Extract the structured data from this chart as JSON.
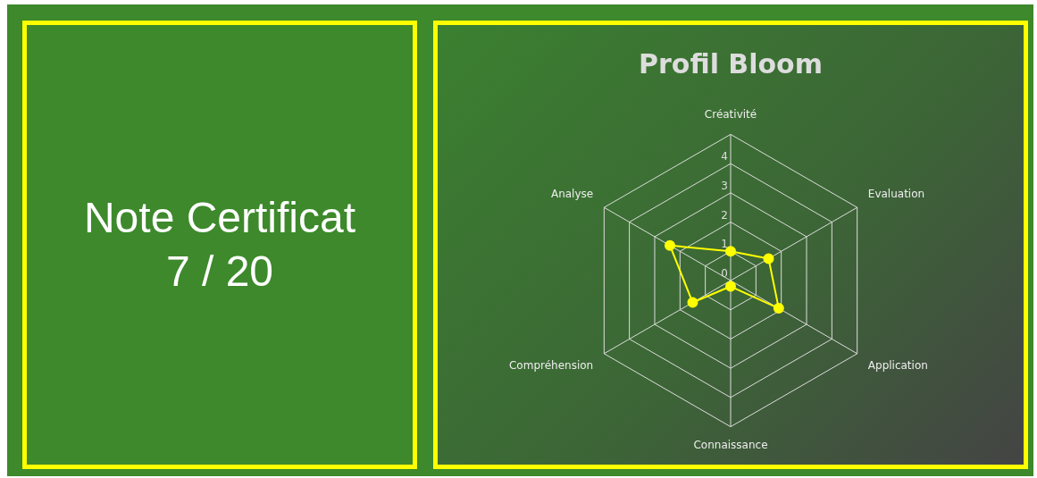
{
  "chart_data": [
    {
      "type": "other",
      "annotations": [
        "Note Certificat",
        "7 / 20"
      ]
    },
    {
      "type": "radar",
      "title": "Profil Bloom",
      "categories": [
        "Créativité",
        "Evaluation",
        "Application",
        "Connaissance",
        "Compréhension",
        "Analyse"
      ],
      "series": [
        {
          "color": "#ffff00",
          "values": [
            1,
            1.5,
            1.9,
            0.2,
            1.5,
            2.4
          ]
        }
      ],
      "ylim": [
        0,
        5
      ],
      "yticks": [
        0,
        1,
        2,
        3,
        4
      ],
      "grid": true,
      "legend": false,
      "marker": "circle"
    }
  ]
}
